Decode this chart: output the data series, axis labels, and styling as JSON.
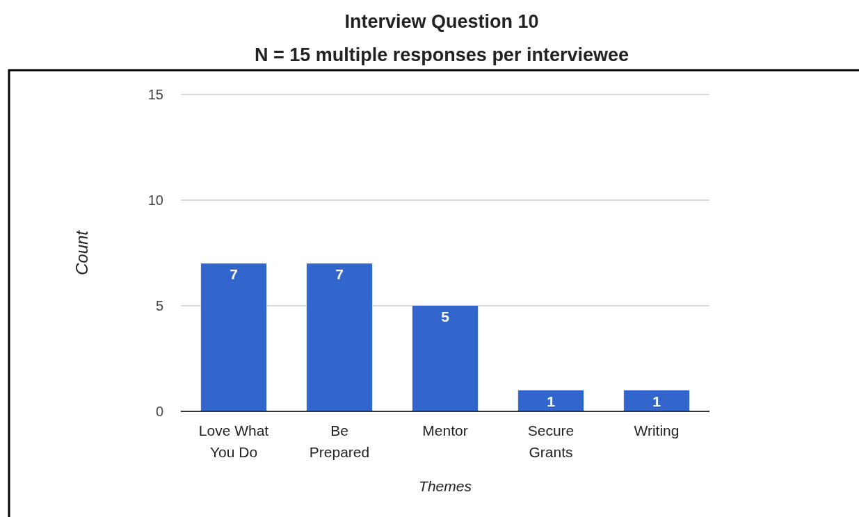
{
  "chart_data": {
    "type": "bar",
    "title": "Interview Question 10",
    "subtitle": "N = 15 multiple responses per interviewee",
    "xlabel": "Themes",
    "ylabel": "Count",
    "categories": [
      "Love What You Do",
      "Be Prepared",
      "Mentor",
      "Secure Grants",
      "Writing"
    ],
    "values": [
      7,
      7,
      5,
      1,
      1
    ],
    "color": "#3366cc",
    "ylim": [
      0,
      15
    ],
    "yticks": [
      0,
      5,
      10,
      15
    ],
    "grid": "y",
    "data_labels": true
  }
}
